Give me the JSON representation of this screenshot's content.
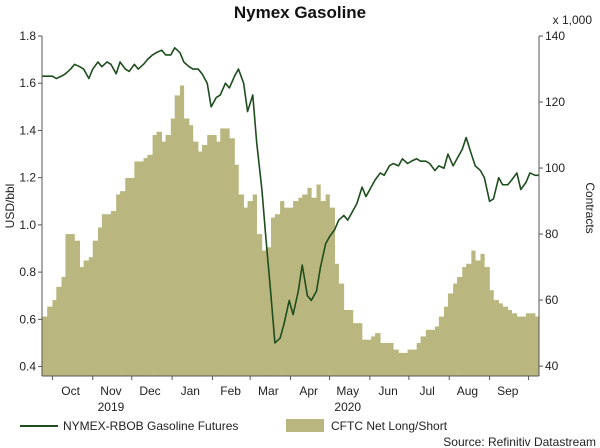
{
  "chart_data": {
    "type": "line",
    "title": "Nymex Gasoline",
    "ylabel_left": "USD/bbl",
    "ylabel_right": "Contracts",
    "right_multiplier": "x 1,000",
    "ylim_left": [
      0.36,
      1.8
    ],
    "ylim_right": [
      37,
      140
    ],
    "yticks_left": [
      "1.8",
      "1.6",
      "1.4",
      "1.2",
      "1.0",
      "0.8",
      "0.6",
      "0.4"
    ],
    "yticks_left_values": [
      1.8,
      1.6,
      1.4,
      1.2,
      1.0,
      0.8,
      0.6,
      0.4
    ],
    "yticks_right": [
      "140",
      "120",
      "100",
      "80",
      "60",
      "40"
    ],
    "yticks_right_values": [
      140,
      120,
      100,
      80,
      60,
      40
    ],
    "xlim": [
      "2019-09-23",
      "2020-10-09"
    ],
    "xticks_month": [
      "Oct",
      "Nov",
      "Dec",
      "Jan",
      "Feb",
      "Mar",
      "Apr",
      "May",
      "Jun",
      "Jul",
      "Aug",
      "Sep"
    ],
    "xticks_month_dates": [
      "2019-10-15",
      "2019-11-15",
      "2019-12-15",
      "2020-01-15",
      "2020-02-15",
      "2020-03-15",
      "2020-04-15",
      "2020-05-15",
      "2020-06-15",
      "2020-07-15",
      "2020-08-15",
      "2020-09-15"
    ],
    "xticks_year": [
      "2019",
      "2020"
    ],
    "xticks_year_dates": [
      "2019-11-15",
      "2020-05-15"
    ],
    "legend_position": "bottom",
    "grid": false,
    "colors": {
      "line": "#1e4d1e",
      "area": "#b9b77f",
      "axis": "#555555"
    },
    "series": [
      {
        "name": "NYMEX-RBOB Gasoline Futures",
        "type": "line",
        "axis": "left",
        "x": [
          "2019-09-23",
          "2019-09-27",
          "2019-10-01",
          "2019-10-04",
          "2019-10-08",
          "2019-10-11",
          "2019-10-15",
          "2019-10-18",
          "2019-10-22",
          "2019-10-25",
          "2019-10-29",
          "2019-11-01",
          "2019-11-05",
          "2019-11-08",
          "2019-11-12",
          "2019-11-15",
          "2019-11-19",
          "2019-11-22",
          "2019-11-26",
          "2019-11-29",
          "2019-12-03",
          "2019-12-06",
          "2019-12-10",
          "2019-12-13",
          "2019-12-17",
          "2019-12-20",
          "2019-12-24",
          "2019-12-27",
          "2019-12-31",
          "2020-01-03",
          "2020-01-07",
          "2020-01-10",
          "2020-01-14",
          "2020-01-17",
          "2020-01-21",
          "2020-01-24",
          "2020-01-28",
          "2020-01-31",
          "2020-02-04",
          "2020-02-07",
          "2020-02-11",
          "2020-02-14",
          "2020-02-18",
          "2020-02-21",
          "2020-02-25",
          "2020-02-28",
          "2020-03-03",
          "2020-03-06",
          "2020-03-10",
          "2020-03-13",
          "2020-03-17",
          "2020-03-20",
          "2020-03-24",
          "2020-03-27",
          "2020-03-31",
          "2020-04-03",
          "2020-04-07",
          "2020-04-10",
          "2020-04-14",
          "2020-04-17",
          "2020-04-21",
          "2020-04-24",
          "2020-04-28",
          "2020-05-01",
          "2020-05-05",
          "2020-05-08",
          "2020-05-12",
          "2020-05-15",
          "2020-05-19",
          "2020-05-22",
          "2020-05-26",
          "2020-05-29",
          "2020-06-02",
          "2020-06-05",
          "2020-06-09",
          "2020-06-12",
          "2020-06-16",
          "2020-06-19",
          "2020-06-23",
          "2020-06-26",
          "2020-06-30",
          "2020-07-03",
          "2020-07-07",
          "2020-07-10",
          "2020-07-14",
          "2020-07-17",
          "2020-07-21",
          "2020-07-24",
          "2020-07-28",
          "2020-07-31",
          "2020-08-04",
          "2020-08-07",
          "2020-08-11",
          "2020-08-14",
          "2020-08-18",
          "2020-08-21",
          "2020-08-25",
          "2020-08-28",
          "2020-09-01",
          "2020-09-04",
          "2020-09-08",
          "2020-09-11",
          "2020-09-15",
          "2020-09-18",
          "2020-09-22",
          "2020-09-25",
          "2020-09-29",
          "2020-10-02",
          "2020-10-06",
          "2020-10-09"
        ],
        "values": [
          1.63,
          1.63,
          1.63,
          1.62,
          1.63,
          1.64,
          1.66,
          1.68,
          1.67,
          1.66,
          1.62,
          1.66,
          1.69,
          1.67,
          1.69,
          1.68,
          1.64,
          1.69,
          1.66,
          1.65,
          1.68,
          1.66,
          1.68,
          1.7,
          1.72,
          1.73,
          1.74,
          1.72,
          1.72,
          1.75,
          1.73,
          1.69,
          1.67,
          1.66,
          1.66,
          1.64,
          1.6,
          1.5,
          1.54,
          1.55,
          1.6,
          1.58,
          1.63,
          1.66,
          1.6,
          1.48,
          1.55,
          1.35,
          1.15,
          0.95,
          0.7,
          0.5,
          0.52,
          0.58,
          0.68,
          0.62,
          0.72,
          0.83,
          0.7,
          0.68,
          0.72,
          0.82,
          0.92,
          0.95,
          0.98,
          1.02,
          1.04,
          1.02,
          1.06,
          1.09,
          1.16,
          1.12,
          1.16,
          1.19,
          1.22,
          1.21,
          1.25,
          1.26,
          1.25,
          1.28,
          1.26,
          1.27,
          1.28,
          1.27,
          1.27,
          1.26,
          1.23,
          1.25,
          1.24,
          1.3,
          1.25,
          1.28,
          1.32,
          1.37,
          1.3,
          1.25,
          1.23,
          1.2,
          1.1,
          1.11,
          1.2,
          1.17,
          1.17,
          1.19,
          1.22,
          1.15,
          1.18,
          1.22,
          1.21,
          1.21
        ]
      },
      {
        "name": "CFTC Net Long/Short",
        "type": "area",
        "axis": "right",
        "x": [
          "2019-09-23",
          "2019-09-27",
          "2019-10-01",
          "2019-10-04",
          "2019-10-08",
          "2019-10-11",
          "2019-10-15",
          "2019-10-18",
          "2019-10-22",
          "2019-10-25",
          "2019-10-29",
          "2019-11-01",
          "2019-11-05",
          "2019-11-08",
          "2019-11-12",
          "2019-11-15",
          "2019-11-19",
          "2019-11-22",
          "2019-11-26",
          "2019-11-29",
          "2019-12-03",
          "2019-12-06",
          "2019-12-10",
          "2019-12-13",
          "2019-12-17",
          "2019-12-20",
          "2019-12-24",
          "2019-12-27",
          "2019-12-31",
          "2020-01-03",
          "2020-01-07",
          "2020-01-10",
          "2020-01-14",
          "2020-01-17",
          "2020-01-21",
          "2020-01-24",
          "2020-01-28",
          "2020-01-31",
          "2020-02-04",
          "2020-02-07",
          "2020-02-11",
          "2020-02-14",
          "2020-02-18",
          "2020-02-21",
          "2020-02-25",
          "2020-02-28",
          "2020-03-03",
          "2020-03-06",
          "2020-03-10",
          "2020-03-13",
          "2020-03-17",
          "2020-03-20",
          "2020-03-24",
          "2020-03-27",
          "2020-03-31",
          "2020-04-03",
          "2020-04-07",
          "2020-04-10",
          "2020-04-14",
          "2020-04-17",
          "2020-04-21",
          "2020-04-24",
          "2020-04-28",
          "2020-05-01",
          "2020-05-05",
          "2020-05-08",
          "2020-05-12",
          "2020-05-15",
          "2020-05-19",
          "2020-05-22",
          "2020-05-26",
          "2020-05-29",
          "2020-06-02",
          "2020-06-05",
          "2020-06-09",
          "2020-06-12",
          "2020-06-16",
          "2020-06-19",
          "2020-06-23",
          "2020-06-26",
          "2020-06-30",
          "2020-07-03",
          "2020-07-07",
          "2020-07-10",
          "2020-07-14",
          "2020-07-17",
          "2020-07-21",
          "2020-07-24",
          "2020-07-28",
          "2020-07-31",
          "2020-08-04",
          "2020-08-07",
          "2020-08-11",
          "2020-08-14",
          "2020-08-18",
          "2020-08-21",
          "2020-08-25",
          "2020-08-28",
          "2020-09-01",
          "2020-09-04",
          "2020-09-08",
          "2020-09-11",
          "2020-09-15",
          "2020-09-18",
          "2020-09-22",
          "2020-09-25",
          "2020-09-29",
          "2020-10-02",
          "2020-10-06",
          "2020-10-09"
        ],
        "values": [
          55,
          58,
          60,
          64,
          67,
          80,
          80,
          78,
          70,
          72,
          73,
          78,
          82,
          86,
          86,
          87,
          92,
          93,
          97,
          97,
          102,
          102,
          103,
          104,
          110,
          111,
          108,
          110,
          115,
          122,
          125,
          115,
          113,
          108,
          105,
          107,
          110,
          110,
          108,
          112,
          112,
          109,
          101,
          92,
          88,
          90,
          92,
          80,
          75,
          76,
          85,
          86,
          90,
          88,
          88,
          90,
          91,
          92,
          94,
          91,
          95,
          90,
          92,
          88,
          71,
          65,
          57,
          57,
          53,
          53,
          48,
          48,
          49,
          50,
          47,
          47,
          47,
          45,
          44,
          44,
          45,
          45,
          47,
          49,
          51,
          51,
          52,
          55,
          58,
          62,
          65,
          67,
          70,
          71,
          75,
          72,
          74,
          70,
          63,
          60,
          59,
          58,
          57,
          56,
          55,
          55,
          56,
          56,
          55,
          55
        ]
      }
    ],
    "legend": [
      {
        "label": "NYMEX-RBOB Gasoline Futures",
        "kind": "line"
      },
      {
        "label": "CFTC Net Long/Short",
        "kind": "area"
      }
    ],
    "source": "Source: Refinitiv Datastream"
  }
}
